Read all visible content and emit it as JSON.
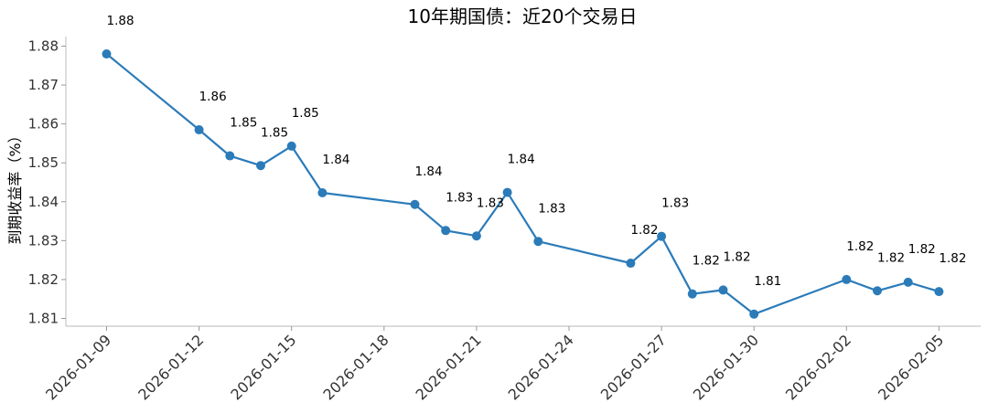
{
  "chart_data": {
    "type": "line",
    "title": "10年期国债：近20个交易日",
    "xlabel": "",
    "ylabel": "到期收益率（%）",
    "ylim": [
      1.808,
      1.882
    ],
    "yticks": [
      "1.81",
      "1.82",
      "1.83",
      "1.84",
      "1.85",
      "1.86",
      "1.87",
      "1.88"
    ],
    "xticks": [
      "2026-01-09",
      "2026-01-12",
      "2026-01-15",
      "2026-01-18",
      "2026-01-21",
      "2026-01-24",
      "2026-01-27",
      "2026-01-30",
      "2026-02-02",
      "2026-02-05"
    ],
    "grid": false,
    "color": "#2b7bb9",
    "series": [
      {
        "points": [
          {
            "x": "2026-01-09",
            "y": 1.878,
            "label": "1.88"
          },
          {
            "x": "2026-01-12",
            "y": 1.8585,
            "label": "1.86"
          },
          {
            "x": "2026-01-13",
            "y": 1.8518,
            "label": "1.85"
          },
          {
            "x": "2026-01-14",
            "y": 1.8493,
            "label": "1.85"
          },
          {
            "x": "2026-01-15",
            "y": 1.8543,
            "label": "1.85"
          },
          {
            "x": "2026-01-16",
            "y": 1.8423,
            "label": "1.84"
          },
          {
            "x": "2026-01-19",
            "y": 1.8393,
            "label": "1.84"
          },
          {
            "x": "2026-01-20",
            "y": 1.8326,
            "label": "1.83"
          },
          {
            "x": "2026-01-21",
            "y": 1.8312,
            "label": "1.83"
          },
          {
            "x": "2026-01-22",
            "y": 1.8424,
            "label": "1.84"
          },
          {
            "x": "2026-01-23",
            "y": 1.8298,
            "label": "1.83"
          },
          {
            "x": "2026-01-26",
            "y": 1.8242,
            "label": "1.82"
          },
          {
            "x": "2026-01-27",
            "y": 1.8311,
            "label": "1.83"
          },
          {
            "x": "2026-01-28",
            "y": 1.8163,
            "label": "1.82"
          },
          {
            "x": "2026-01-29",
            "y": 1.8173,
            "label": "1.82"
          },
          {
            "x": "2026-01-30",
            "y": 1.8111,
            "label": "1.81"
          },
          {
            "x": "2026-02-02",
            "y": 1.82,
            "label": "1.82"
          },
          {
            "x": "2026-02-03",
            "y": 1.8171,
            "label": "1.82"
          },
          {
            "x": "2026-02-04",
            "y": 1.8193,
            "label": "1.82"
          },
          {
            "x": "2026-02-05",
            "y": 1.8169,
            "label": "1.82"
          }
        ]
      }
    ]
  }
}
